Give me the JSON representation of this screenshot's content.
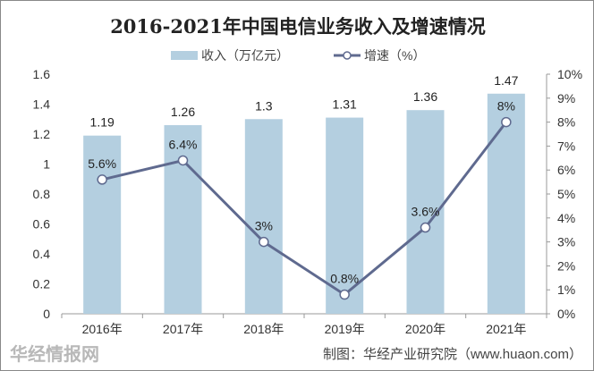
{
  "chart_data": {
    "type": "bar+line",
    "title": "2016-2021年中国电信业务收入及增速情况",
    "categories": [
      "2016年",
      "2017年",
      "2018年",
      "2019年",
      "2020年",
      "2021年"
    ],
    "series": [
      {
        "name": "收入（万亿元）",
        "type": "bar",
        "axis": "left",
        "color": "#b4cfe0",
        "values": [
          1.19,
          1.26,
          1.3,
          1.31,
          1.36,
          1.47
        ],
        "labels": [
          "1.19",
          "1.26",
          "1.3",
          "1.31",
          "1.36",
          "1.47"
        ]
      },
      {
        "name": "增速（%）",
        "type": "line",
        "axis": "right",
        "color": "#5f6a8f",
        "values": [
          5.6,
          6.4,
          3,
          0.8,
          3.6,
          8
        ],
        "labels": [
          "5.6%",
          "6.4%",
          "3%",
          "0.8%",
          "3.6%",
          "8%"
        ]
      }
    ],
    "ylim_left": [
      0,
      1.6
    ],
    "yticks_left": [
      "0",
      "0.2",
      "0.4",
      "0.6",
      "0.8",
      "1",
      "1.2",
      "1.4",
      "1.6"
    ],
    "ylim_right": [
      0,
      10
    ],
    "yticks_right": [
      "0%",
      "1%",
      "2%",
      "3%",
      "4%",
      "5%",
      "6%",
      "7%",
      "8%",
      "9%",
      "10%"
    ],
    "legend_position": "top-center",
    "grid": false
  },
  "source": "制图：华经产业研究院（www.huaon.com）",
  "watermark": "华经情报网 huaon.com"
}
